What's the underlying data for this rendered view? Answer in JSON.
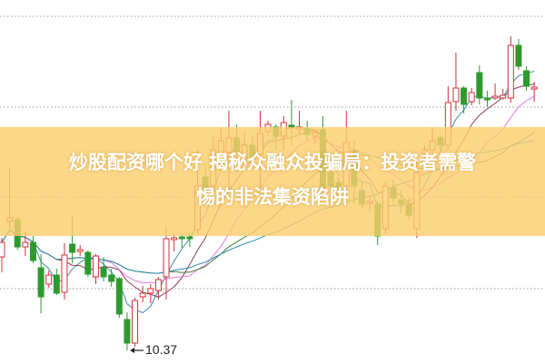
{
  "headline": {
    "line1": "炒股配资哪个好 揭秘众融众投骗局：投资者需警",
    "line2": "惕的非法集资陷阱"
  },
  "colors": {
    "up": "#d0303a",
    "down": "#2e9a2e",
    "banner": "#fbce6e",
    "ma_lines": [
      "#3b92a8",
      "#8b3c55",
      "#e27ae0",
      "#3f7f3a",
      "#2f8fb0"
    ]
  },
  "chart_data": {
    "type": "candlestick",
    "grid": "horizontal dotted",
    "low_annotation": "10.37",
    "candles": [
      [
        11.4,
        11.61,
        11.23,
        11.56
      ],
      [
        11.79,
        12.38,
        11.71,
        11.83
      ],
      [
        11.81,
        11.83,
        11.48,
        11.51
      ],
      [
        11.51,
        11.68,
        11.41,
        11.56
      ],
      [
        11.56,
        11.63,
        11.33,
        11.36
      ],
      [
        11.28,
        11.43,
        10.78,
        10.96
      ],
      [
        11.1,
        11.25,
        11.06,
        11.2
      ],
      [
        11.2,
        11.27,
        10.98,
        11.0
      ],
      [
        11.01,
        11.55,
        10.93,
        11.42
      ],
      [
        11.54,
        11.86,
        11.33,
        11.45
      ],
      [
        11.46,
        11.53,
        11.41,
        11.48
      ],
      [
        11.45,
        11.47,
        11.18,
        11.21
      ],
      [
        11.18,
        11.43,
        11.1,
        11.41
      ],
      [
        11.28,
        11.4,
        11.13,
        11.18
      ],
      [
        11.2,
        11.27,
        11.07,
        11.13
      ],
      [
        11.16,
        11.18,
        10.73,
        10.77
      ],
      [
        10.71,
        10.79,
        10.37,
        10.45
      ],
      [
        10.45,
        10.95,
        10.41,
        10.92
      ],
      [
        10.96,
        11.08,
        10.9,
        11.0
      ],
      [
        11.0,
        11.1,
        10.89,
        11.05
      ],
      [
        11.03,
        11.18,
        10.93,
        11.15
      ],
      [
        11.18,
        11.73,
        10.93,
        11.6
      ],
      [
        11.59,
        11.65,
        11.46,
        11.61
      ],
      [
        11.62,
        11.65,
        11.5,
        11.6
      ],
      [
        11.62,
        11.68,
        11.51,
        11.6
      ],
      [
        11.7,
        12.58,
        11.65,
        12.18
      ],
      [
        12.28,
        12.43,
        12.03,
        12.08
      ],
      [
        12.18,
        12.73,
        12.13,
        12.58
      ],
      [
        12.53,
        12.83,
        12.43,
        12.68
      ],
      [
        12.55,
        13.01,
        12.13,
        12.71
      ],
      [
        12.71,
        12.86,
        12.33,
        12.56
      ],
      [
        12.48,
        12.78,
        12.38,
        12.63
      ],
      [
        12.63,
        12.73,
        12.43,
        12.48
      ],
      [
        12.53,
        13.01,
        12.08,
        12.76
      ],
      [
        12.78,
        12.9,
        12.73,
        12.86
      ],
      [
        12.83,
        12.86,
        12.58,
        12.73
      ],
      [
        12.73,
        12.95,
        12.58,
        12.88
      ],
      [
        12.85,
        13.13,
        12.63,
        12.82
      ],
      [
        12.81,
        13.01,
        12.75,
        12.83
      ],
      [
        12.81,
        12.9,
        12.68,
        12.75
      ],
      [
        12.73,
        12.8,
        12.65,
        12.77
      ],
      [
        12.8,
        12.95,
        12.11,
        12.16
      ],
      [
        12.33,
        12.43,
        12.1,
        12.18
      ],
      [
        12.22,
        12.28,
        12.03,
        12.1
      ],
      [
        12.18,
        13.01,
        12.08,
        12.66
      ],
      [
        12.57,
        12.68,
        11.98,
        12.18
      ],
      [
        12.13,
        12.23,
        11.93,
        11.98
      ],
      [
        11.99,
        12.08,
        11.91,
        12.01
      ],
      [
        11.98,
        12.01,
        11.53,
        11.63
      ],
      [
        11.71,
        12.23,
        11.65,
        12.18
      ],
      [
        12.16,
        12.25,
        11.96,
        12.05
      ],
      [
        12.03,
        12.13,
        11.88,
        11.98
      ],
      [
        11.98,
        12.06,
        11.81,
        11.86
      ],
      [
        11.71,
        12.45,
        11.61,
        12.33
      ],
      [
        12.53,
        12.63,
        12.45,
        12.58
      ],
      [
        12.58,
        12.83,
        12.55,
        12.68
      ],
      [
        12.71,
        12.75,
        12.55,
        12.63
      ],
      [
        12.63,
        13.28,
        12.58,
        13.1
      ],
      [
        13.11,
        13.65,
        13.01,
        13.26
      ],
      [
        13.26,
        13.28,
        12.98,
        13.08
      ],
      [
        13.11,
        13.26,
        13.07,
        13.21
      ],
      [
        13.43,
        13.51,
        13.08,
        13.15
      ],
      [
        13.15,
        13.23,
        13.05,
        13.13
      ],
      [
        13.15,
        13.31,
        13.13,
        13.17
      ],
      [
        13.15,
        13.25,
        13.13,
        13.18
      ],
      [
        13.15,
        13.83,
        13.1,
        13.73
      ],
      [
        13.73,
        13.8,
        13.46,
        13.5
      ],
      [
        13.45,
        13.5,
        13.23,
        13.28
      ],
      [
        13.25,
        13.33,
        13.11,
        13.27
      ]
    ]
  }
}
